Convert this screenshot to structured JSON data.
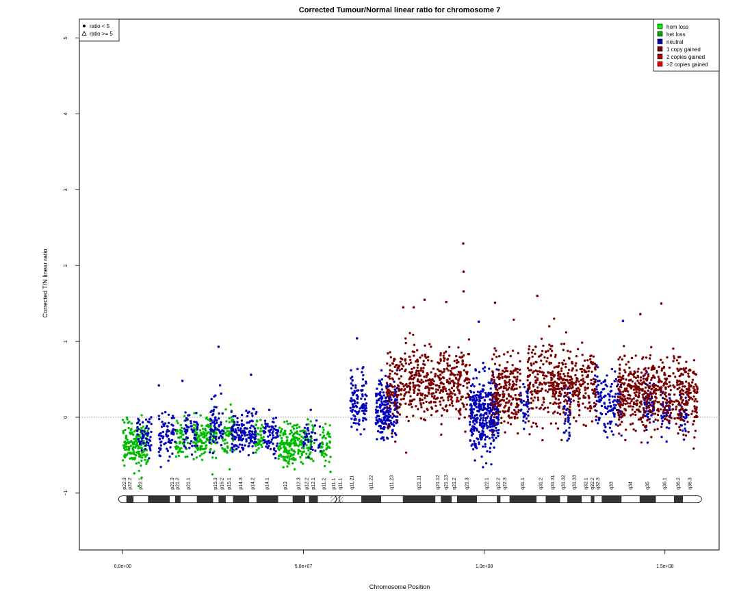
{
  "chart_data": {
    "type": "scatter",
    "title": "Corrected Tumour/Normal linear ratio for chromosome  7",
    "xlabel": "Chromosome Position",
    "ylabel": "Corrected T/N linear ratio",
    "xlim": [
      -12000000,
      165000000
    ],
    "ylim": [
      -1.75,
      5.25
    ],
    "x_ticks": [
      0,
      50000000,
      100000000,
      150000000
    ],
    "x_tick_labels": [
      "0.0e+00",
      "5.0e+07",
      "1.0e+08",
      "1.5e+08"
    ],
    "y_ticks": [
      -1,
      0,
      1,
      2,
      3,
      4,
      5
    ],
    "y_tick_labels": [
      "−1",
      "0",
      "1",
      "2",
      "3",
      "4",
      "5"
    ],
    "reference_line": 0,
    "shape_legend": {
      "placement": "top-left",
      "entries": [
        {
          "label": "ratio < 5",
          "symbol": "dot"
        },
        {
          "label": "ratio >= 5",
          "symbol": "triangle"
        }
      ]
    },
    "state_legend": {
      "placement": "top-right",
      "entries": [
        {
          "label": "hom loss",
          "color": "#00ee00"
        },
        {
          "label": "het loss",
          "color": "#00aa00"
        },
        {
          "label": "neutral",
          "color": "#0000aa"
        },
        {
          "label": "1 copy gained",
          "color": "#700000"
        },
        {
          "label": "2 copies gained",
          "color": "#aa0000"
        },
        {
          "label": ">2 copies gained",
          "color": "#ee0000"
        }
      ]
    },
    "series": [
      {
        "name": "het loss",
        "color": "#00bb00",
        "segments": [
          {
            "start": 0,
            "end": 7000000,
            "center": -0.38,
            "spread": 0.14,
            "n": 180,
            "seed": 11
          },
          {
            "start": 14500000,
            "end": 18000000,
            "center": -0.27,
            "spread": 0.12,
            "n": 60,
            "seed": 12
          },
          {
            "start": 19500000,
            "end": 26000000,
            "center": -0.28,
            "spread": 0.13,
            "n": 140,
            "seed": 13
          },
          {
            "start": 27500000,
            "end": 31000000,
            "center": -0.22,
            "spread": 0.14,
            "n": 60,
            "seed": 14
          },
          {
            "start": 36500000,
            "end": 39000000,
            "center": -0.3,
            "spread": 0.12,
            "n": 40,
            "seed": 15
          },
          {
            "start": 43000000,
            "end": 48000000,
            "center": -0.37,
            "spread": 0.13,
            "n": 140,
            "seed": 16
          },
          {
            "start": 48000000,
            "end": 53000000,
            "center": -0.3,
            "spread": 0.12,
            "n": 80,
            "seed": 17
          },
          {
            "start": 54500000,
            "end": 57500000,
            "center": -0.38,
            "spread": 0.14,
            "n": 50,
            "seed": 18
          }
        ]
      },
      {
        "name": "neutral",
        "color": "#0000bb",
        "segments": [
          {
            "start": 4000000,
            "end": 8000000,
            "center": -0.2,
            "spread": 0.14,
            "n": 60,
            "seed": 21
          },
          {
            "start": 10000000,
            "end": 14500000,
            "center": -0.22,
            "spread": 0.14,
            "n": 70,
            "seed": 22
          },
          {
            "start": 17000000,
            "end": 21000000,
            "center": -0.18,
            "spread": 0.14,
            "n": 50,
            "seed": 23
          },
          {
            "start": 24000000,
            "end": 28000000,
            "center": -0.1,
            "spread": 0.2,
            "n": 70,
            "seed": 24
          },
          {
            "start": 30000000,
            "end": 37000000,
            "center": -0.22,
            "spread": 0.13,
            "n": 140,
            "seed": 25
          },
          {
            "start": 39000000,
            "end": 43000000,
            "center": -0.22,
            "spread": 0.14,
            "n": 70,
            "seed": 26
          },
          {
            "start": 50000000,
            "end": 55000000,
            "center": -0.25,
            "spread": 0.13,
            "n": 40,
            "seed": 27
          },
          {
            "start": 63000000,
            "end": 67500000,
            "center": 0.2,
            "spread": 0.2,
            "n": 110,
            "seed": 28
          },
          {
            "start": 70000000,
            "end": 76000000,
            "center": 0.1,
            "spread": 0.2,
            "n": 200,
            "seed": 29
          },
          {
            "start": 96000000,
            "end": 104000000,
            "center": 0.05,
            "spread": 0.24,
            "n": 380,
            "seed": 30
          },
          {
            "start": 110000000,
            "end": 112500000,
            "center": 0.2,
            "spread": 0.15,
            "n": 40,
            "seed": 31
          },
          {
            "start": 122000000,
            "end": 124000000,
            "center": 0.1,
            "spread": 0.18,
            "n": 40,
            "seed": 32
          },
          {
            "start": 130500000,
            "end": 138000000,
            "center": 0.2,
            "spread": 0.2,
            "n": 130,
            "seed": 33
          },
          {
            "start": 144000000,
            "end": 147000000,
            "center": 0.15,
            "spread": 0.2,
            "n": 50,
            "seed": 34
          },
          {
            "start": 149000000,
            "end": 151500000,
            "center": 0.05,
            "spread": 0.15,
            "n": 40,
            "seed": 35
          },
          {
            "start": 154000000,
            "end": 156000000,
            "center": 0.0,
            "spread": 0.15,
            "n": 30,
            "seed": 36
          }
        ]
      },
      {
        "name": "1 copy gained",
        "color": "#7a0000",
        "segments": [
          {
            "start": 73000000,
            "end": 96000000,
            "center": 0.45,
            "spread": 0.25,
            "n": 520,
            "seed": 41
          },
          {
            "start": 102000000,
            "end": 110000000,
            "center": 0.35,
            "spread": 0.24,
            "n": 220,
            "seed": 42
          },
          {
            "start": 112000000,
            "end": 121000000,
            "center": 0.45,
            "spread": 0.26,
            "n": 220,
            "seed": 43
          },
          {
            "start": 121000000,
            "end": 131000000,
            "center": 0.4,
            "spread": 0.22,
            "n": 230,
            "seed": 44
          },
          {
            "start": 137000000,
            "end": 150000000,
            "center": 0.33,
            "spread": 0.24,
            "n": 380,
            "seed": 45
          },
          {
            "start": 150000000,
            "end": 159000000,
            "center": 0.32,
            "spread": 0.24,
            "n": 230,
            "seed": 46
          }
        ]
      }
    ],
    "outliers": [
      {
        "x": 26500000,
        "y": 0.93,
        "series": "neutral"
      },
      {
        "x": 16500000,
        "y": 0.48,
        "series": "neutral"
      },
      {
        "x": 35500000,
        "y": 0.56,
        "series": "neutral"
      },
      {
        "x": 64800000,
        "y": 1.04,
        "series": "neutral"
      },
      {
        "x": 94200000,
        "y": 2.29,
        "series": "1 copy gained"
      },
      {
        "x": 94300000,
        "y": 1.92,
        "series": "1 copy gained"
      },
      {
        "x": 94300000,
        "y": 1.66,
        "series": "1 copy gained"
      },
      {
        "x": 83500000,
        "y": 1.55,
        "series": "1 copy gained"
      },
      {
        "x": 89500000,
        "y": 1.52,
        "series": "1 copy gained"
      },
      {
        "x": 103000000,
        "y": 1.51,
        "series": "1 copy gained"
      },
      {
        "x": 114700000,
        "y": 1.6,
        "series": "1 copy gained"
      },
      {
        "x": 149000000,
        "y": 1.5,
        "series": "1 copy gained"
      },
      {
        "x": 143200000,
        "y": 1.36,
        "series": "1 copy gained"
      },
      {
        "x": 138400000,
        "y": 1.27,
        "series": "neutral"
      },
      {
        "x": 77600000,
        "y": 1.45,
        "series": "1 copy gained"
      },
      {
        "x": 80500000,
        "y": 1.45,
        "series": "1 copy gained"
      },
      {
        "x": 98500000,
        "y": 1.26,
        "series": "neutral"
      },
      {
        "x": 118000000,
        "y": 1.2,
        "series": "1 copy gained"
      },
      {
        "x": 10000000,
        "y": 0.42,
        "series": "neutral"
      },
      {
        "x": 3200000,
        "y": -0.74,
        "series": "het loss"
      },
      {
        "x": 57500000,
        "y": -0.72,
        "series": "het loss"
      }
    ],
    "ideogram": {
      "start": 0,
      "end": 159000000,
      "y": -1.08,
      "bands": [
        {
          "name": "p22.3",
          "start": 0,
          "end": 1000000,
          "stain": "white"
        },
        {
          "name": "p22.2",
          "start": 1000000,
          "end": 3000000,
          "stain": "black"
        },
        {
          "name": "p22.1",
          "start": 3000000,
          "end": 7000000,
          "stain": "white"
        },
        {
          "name": "",
          "start": 7000000,
          "end": 13000000,
          "stain": "black"
        },
        {
          "name": "p21.3",
          "start": 13000000,
          "end": 14500000,
          "stain": "white"
        },
        {
          "name": "p21.2",
          "start": 14500000,
          "end": 16000000,
          "stain": "black"
        },
        {
          "name": "p21.1",
          "start": 16000000,
          "end": 20500000,
          "stain": "white"
        },
        {
          "name": "",
          "start": 20500000,
          "end": 25000000,
          "stain": "black"
        },
        {
          "name": "p15.3",
          "start": 25000000,
          "end": 26500000,
          "stain": "white"
        },
        {
          "name": "p15.2",
          "start": 26500000,
          "end": 28500000,
          "stain": "black"
        },
        {
          "name": "p15.1",
          "start": 28500000,
          "end": 30500000,
          "stain": "white"
        },
        {
          "name": "p14.3",
          "start": 30500000,
          "end": 35000000,
          "stain": "black"
        },
        {
          "name": "p14.2",
          "start": 35000000,
          "end": 37000000,
          "stain": "white"
        },
        {
          "name": "p14.1",
          "start": 37000000,
          "end": 43000000,
          "stain": "black"
        },
        {
          "name": "p13",
          "start": 43000000,
          "end": 47000000,
          "stain": "white"
        },
        {
          "name": "p12.3",
          "start": 47000000,
          "end": 50500000,
          "stain": "black"
        },
        {
          "name": "p12.2",
          "start": 50500000,
          "end": 51500000,
          "stain": "white"
        },
        {
          "name": "p12.1",
          "start": 51500000,
          "end": 54000000,
          "stain": "black"
        },
        {
          "name": "p11.2",
          "start": 54000000,
          "end": 57500000,
          "stain": "white"
        },
        {
          "name": "p11.1",
          "start": 57500000,
          "end": 59500000,
          "stain": "hatched"
        },
        {
          "name": "q11.1",
          "start": 59500000,
          "end": 61000000,
          "stain": "hatched"
        },
        {
          "name": "q11.21",
          "start": 61000000,
          "end": 66000000,
          "stain": "white"
        },
        {
          "name": "q11.22",
          "start": 66000000,
          "end": 71500000,
          "stain": "black"
        },
        {
          "name": "q11.23",
          "start": 71500000,
          "end": 77500000,
          "stain": "white"
        },
        {
          "name": "q21.11",
          "start": 77500000,
          "end": 86500000,
          "stain": "black"
        },
        {
          "name": "q21.12",
          "start": 86500000,
          "end": 88000000,
          "stain": "white"
        },
        {
          "name": "q21.13",
          "start": 88000000,
          "end": 91000000,
          "stain": "black"
        },
        {
          "name": "q21.2",
          "start": 91000000,
          "end": 92500000,
          "stain": "white"
        },
        {
          "name": "q21.3",
          "start": 92500000,
          "end": 98000000,
          "stain": "black"
        },
        {
          "name": "q22.1",
          "start": 98000000,
          "end": 103500000,
          "stain": "white"
        },
        {
          "name": "q22.2",
          "start": 103500000,
          "end": 104500000,
          "stain": "black"
        },
        {
          "name": "q22.3",
          "start": 104500000,
          "end": 107000000,
          "stain": "white"
        },
        {
          "name": "q31.1",
          "start": 107000000,
          "end": 114500000,
          "stain": "black"
        },
        {
          "name": "q31.2",
          "start": 114500000,
          "end": 117000000,
          "stain": "white"
        },
        {
          "name": "q31.31",
          "start": 117000000,
          "end": 121000000,
          "stain": "black"
        },
        {
          "name": "q31.32",
          "start": 121000000,
          "end": 123000000,
          "stain": "white"
        },
        {
          "name": "q31.33",
          "start": 123000000,
          "end": 127000000,
          "stain": "black"
        },
        {
          "name": "q32.1",
          "start": 127000000,
          "end": 129500000,
          "stain": "white"
        },
        {
          "name": "q32.2",
          "start": 129500000,
          "end": 130500000,
          "stain": "black"
        },
        {
          "name": "q32.3",
          "start": 130500000,
          "end": 132500000,
          "stain": "white"
        },
        {
          "name": "q33",
          "start": 132500000,
          "end": 138000000,
          "stain": "black"
        },
        {
          "name": "q34",
          "start": 138000000,
          "end": 143000000,
          "stain": "white"
        },
        {
          "name": "q35",
          "start": 143000000,
          "end": 147500000,
          "stain": "black"
        },
        {
          "name": "q36.1",
          "start": 147500000,
          "end": 152500000,
          "stain": "white"
        },
        {
          "name": "q36.2",
          "start": 152500000,
          "end": 155000000,
          "stain": "black"
        },
        {
          "name": "q36.3",
          "start": 155000000,
          "end": 159000000,
          "stain": "white"
        }
      ]
    }
  }
}
